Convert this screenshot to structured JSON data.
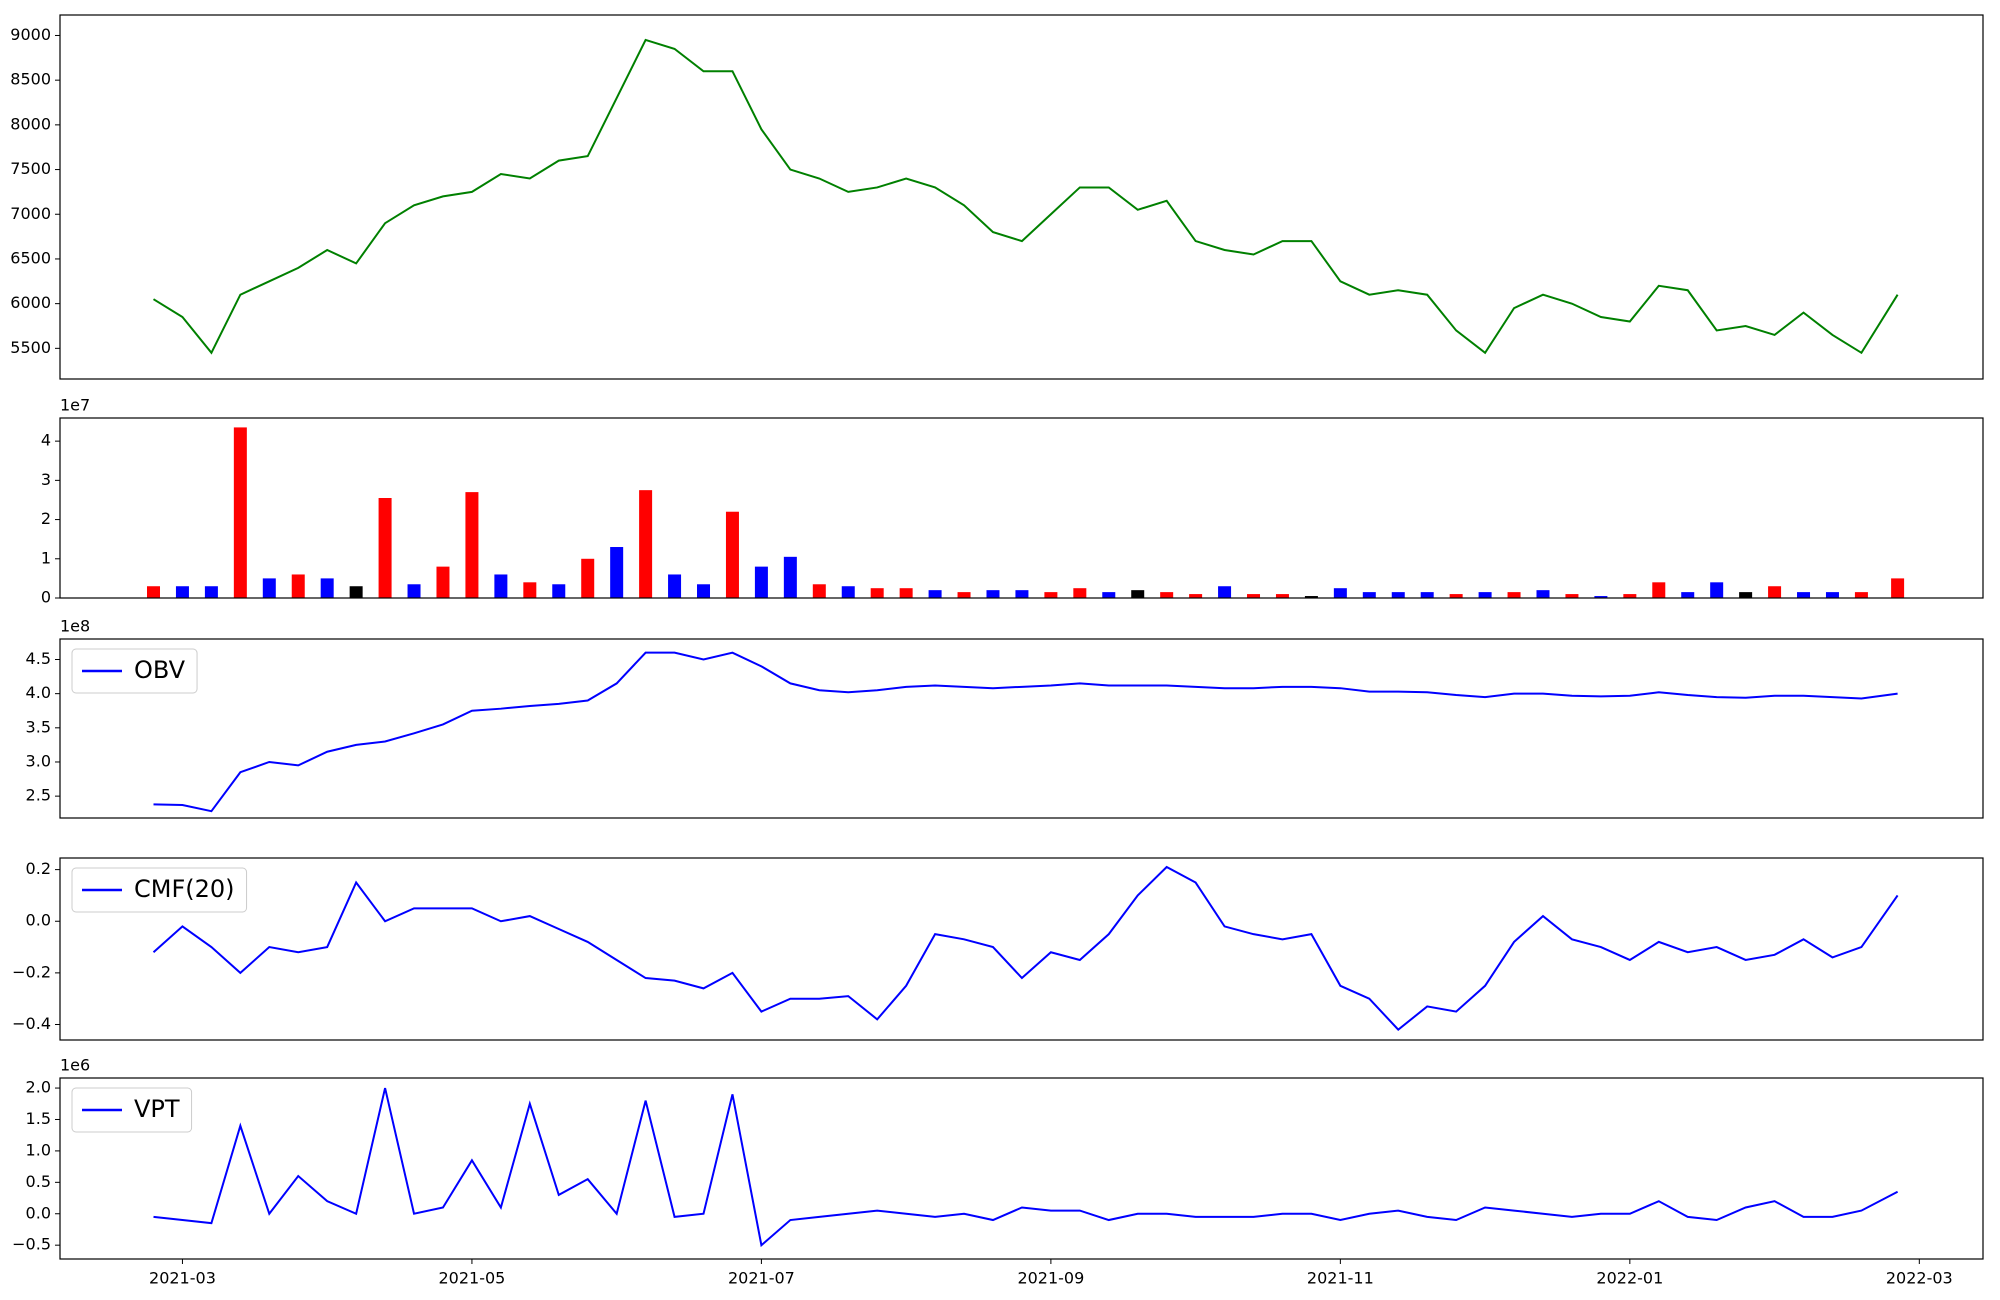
{
  "chart_data": [
    {
      "type": "line",
      "x": [
        1.8,
        2.0,
        2.2,
        2.4,
        2.6,
        2.8,
        3.0,
        3.2,
        3.4,
        3.6,
        3.8,
        4.0,
        4.2,
        4.4,
        4.6,
        4.8,
        5.0,
        5.2,
        5.4,
        5.6,
        5.8,
        6.0,
        6.2,
        6.4,
        6.6,
        6.8,
        7.0,
        7.2,
        7.4,
        7.6,
        7.8,
        8.0,
        8.2,
        8.4,
        8.6,
        8.8,
        9.0,
        9.2,
        9.4,
        9.6,
        9.8,
        10.0,
        10.2,
        10.4,
        10.6,
        10.8,
        11.0,
        11.2,
        11.4,
        11.6,
        11.8,
        12.0,
        12.2,
        12.4,
        12.6,
        12.8,
        13.0,
        13.2,
        13.4,
        13.6,
        13.85
      ],
      "series": [
        {
          "color": "green",
          "values": [
            6050,
            5850,
            5450,
            6100,
            6250,
            6400,
            6600,
            6450,
            6900,
            7100,
            7200,
            7250,
            7450,
            7400,
            7600,
            7650,
            8300,
            8950,
            8850,
            8600,
            8600,
            7950,
            7500,
            7400,
            7250,
            7300,
            7400,
            7300,
            7100,
            6800,
            6700,
            7000,
            7300,
            7300,
            7050,
            7150,
            6700,
            6600,
            6550,
            6700,
            6700,
            6250,
            6100,
            6150,
            6100,
            5700,
            5450,
            5950,
            6100,
            6000,
            5850,
            5800,
            6200,
            6150,
            5700,
            5750,
            5650,
            5900,
            5650,
            5450,
            6100
          ]
        }
      ],
      "xlim": [
        1.154,
        14.44
      ],
      "ylim": [
        5157,
        9229
      ],
      "yticks": [
        5500,
        6000,
        6500,
        7000,
        7500,
        8000,
        8500,
        9000
      ]
    },
    {
      "type": "bar",
      "offset_label": "1e7",
      "x": [
        1.8,
        2.0,
        2.2,
        2.4,
        2.6,
        2.8,
        3.0,
        3.2,
        3.4,
        3.6,
        3.8,
        4.0,
        4.2,
        4.4,
        4.6,
        4.8,
        5.0,
        5.2,
        5.4,
        5.6,
        5.8,
        6.0,
        6.2,
        6.4,
        6.6,
        6.8,
        7.0,
        7.2,
        7.4,
        7.6,
        7.8,
        8.0,
        8.2,
        8.4,
        8.6,
        8.8,
        9.0,
        9.2,
        9.4,
        9.6,
        9.8,
        10.0,
        10.2,
        10.4,
        10.6,
        10.8,
        11.0,
        11.2,
        11.4,
        11.6,
        11.8,
        12.0,
        12.2,
        12.4,
        12.6,
        12.8,
        13.0,
        13.2,
        13.4,
        13.6,
        13.85
      ],
      "values": [
        0.3,
        0.3,
        0.3,
        4.35,
        0.5,
        0.6,
        0.5,
        0.3,
        2.55,
        0.35,
        0.8,
        2.7,
        0.6,
        0.4,
        0.35,
        1.0,
        1.3,
        2.75,
        0.6,
        0.35,
        2.2,
        0.8,
        1.05,
        0.35,
        0.3,
        0.25,
        0.25,
        0.2,
        0.15,
        0.2,
        0.2,
        0.15,
        0.25,
        0.15,
        0.2,
        0.15,
        0.1,
        0.3,
        0.1,
        0.1,
        0.05,
        0.25,
        0.15,
        0.15,
        0.15,
        0.1,
        0.15,
        0.15,
        0.2,
        0.1,
        0.05,
        0.1,
        0.4,
        0.15,
        0.4,
        0.15,
        0.3,
        0.15,
        0.15,
        0.15,
        0.5
      ],
      "colors": [
        "red",
        "blue",
        "blue",
        "red",
        "blue",
        "red",
        "blue",
        "black",
        "red",
        "blue",
        "red",
        "red",
        "blue",
        "red",
        "blue",
        "red",
        "blue",
        "red",
        "blue",
        "blue",
        "red",
        "blue",
        "blue",
        "red",
        "blue",
        "red",
        "red",
        "blue",
        "red",
        "blue",
        "blue",
        "red",
        "red",
        "blue",
        "black",
        "red",
        "red",
        "blue",
        "red",
        "red",
        "black",
        "blue",
        "blue",
        "blue",
        "blue",
        "red",
        "blue",
        "red",
        "blue",
        "red",
        "blue",
        "red",
        "red",
        "blue",
        "blue",
        "black",
        "red",
        "blue",
        "blue",
        "red",
        "red"
      ],
      "xlim": [
        1.154,
        14.44
      ],
      "ylim": [
        0,
        4.59
      ],
      "yticks": [
        0,
        1,
        2,
        3,
        4
      ]
    },
    {
      "type": "line",
      "offset_label": "1e8",
      "legend": "upper left",
      "x": [
        1.8,
        2.0,
        2.2,
        2.4,
        2.6,
        2.8,
        3.0,
        3.2,
        3.4,
        3.6,
        3.8,
        4.0,
        4.2,
        4.4,
        4.6,
        4.8,
        5.0,
        5.2,
        5.4,
        5.6,
        5.8,
        6.0,
        6.2,
        6.4,
        6.6,
        6.8,
        7.0,
        7.2,
        7.4,
        7.6,
        7.8,
        8.0,
        8.2,
        8.4,
        8.6,
        8.8,
        9.0,
        9.2,
        9.4,
        9.6,
        9.8,
        10.0,
        10.2,
        10.4,
        10.6,
        10.8,
        11.0,
        11.2,
        11.4,
        11.6,
        11.8,
        12.0,
        12.2,
        12.4,
        12.6,
        12.8,
        13.0,
        13.2,
        13.4,
        13.6,
        13.85
      ],
      "series": [
        {
          "name": "OBV",
          "color": "blue",
          "values": [
            2.38,
            2.37,
            2.28,
            2.85,
            3.0,
            2.95,
            3.15,
            3.25,
            3.3,
            3.42,
            3.55,
            3.75,
            3.78,
            3.82,
            3.85,
            3.9,
            4.15,
            4.6,
            4.6,
            4.5,
            4.6,
            4.4,
            4.15,
            4.05,
            4.02,
            4.05,
            4.1,
            4.12,
            4.1,
            4.08,
            4.1,
            4.12,
            4.15,
            4.12,
            4.12,
            4.12,
            4.1,
            4.08,
            4.08,
            4.1,
            4.1,
            4.08,
            4.03,
            4.03,
            4.02,
            3.98,
            3.95,
            4.0,
            4.0,
            3.97,
            3.96,
            3.97,
            4.02,
            3.98,
            3.95,
            3.94,
            3.97,
            3.97,
            3.95,
            3.93,
            4.0
          ]
        }
      ],
      "xlim": [
        1.154,
        14.44
      ],
      "ylim": [
        2.18,
        4.8
      ],
      "yticks": [
        2.5,
        {
          "value": 3,
          "label": "3.0"
        },
        3.5,
        {
          "value": 4,
          "label": "4.0"
        },
        4.5
      ]
    },
    {
      "type": "line",
      "legend": "upper left",
      "x": [
        1.8,
        2.0,
        2.2,
        2.4,
        2.6,
        2.8,
        3.0,
        3.2,
        3.4,
        3.6,
        3.8,
        4.0,
        4.2,
        4.4,
        4.6,
        4.8,
        5.0,
        5.2,
        5.4,
        5.6,
        5.8,
        6.0,
        6.2,
        6.4,
        6.6,
        6.8,
        7.0,
        7.2,
        7.4,
        7.6,
        7.8,
        8.0,
        8.2,
        8.4,
        8.6,
        8.8,
        9.0,
        9.2,
        9.4,
        9.6,
        9.8,
        10.0,
        10.2,
        10.4,
        10.6,
        10.8,
        11.0,
        11.2,
        11.4,
        11.6,
        11.8,
        12.0,
        12.2,
        12.4,
        12.6,
        12.8,
        13.0,
        13.2,
        13.4,
        13.6,
        13.85
      ],
      "series": [
        {
          "name": "CMF(20)",
          "color": "blue",
          "values": [
            -0.12,
            -0.02,
            -0.1,
            -0.2,
            -0.1,
            -0.12,
            -0.1,
            0.15,
            0.0,
            0.05,
            0.05,
            0.05,
            0.0,
            0.02,
            -0.03,
            -0.08,
            -0.15,
            -0.22,
            -0.23,
            -0.26,
            -0.2,
            -0.35,
            -0.3,
            -0.3,
            -0.29,
            -0.38,
            -0.25,
            -0.05,
            -0.07,
            -0.1,
            -0.22,
            -0.12,
            -0.15,
            -0.05,
            0.1,
            0.21,
            0.15,
            -0.02,
            -0.05,
            -0.07,
            -0.05,
            -0.25,
            -0.3,
            -0.42,
            -0.33,
            -0.35,
            -0.25,
            -0.08,
            0.02,
            -0.07,
            -0.1,
            -0.15,
            -0.08,
            -0.12,
            -0.1,
            -0.15,
            -0.13,
            -0.07,
            -0.14,
            -0.1,
            0.1
          ]
        }
      ],
      "xlim": [
        1.154,
        14.44
      ],
      "ylim": [
        -0.46,
        0.245
      ],
      "yticks": [
        {
          "value": -0.4,
          "label": "−0.4"
        },
        {
          "value": -0.2,
          "label": "−0.2"
        },
        {
          "value": 0,
          "label": "0.0"
        },
        0.2
      ]
    },
    {
      "type": "line",
      "offset_label": "1e6",
      "legend": "upper left",
      "x": [
        1.8,
        2.0,
        2.2,
        2.4,
        2.6,
        2.8,
        3.0,
        3.2,
        3.4,
        3.6,
        3.8,
        4.0,
        4.2,
        4.4,
        4.6,
        4.8,
        5.0,
        5.2,
        5.4,
        5.6,
        5.8,
        6.0,
        6.2,
        6.4,
        6.6,
        6.8,
        7.0,
        7.2,
        7.4,
        7.6,
        7.8,
        8.0,
        8.2,
        8.4,
        8.6,
        8.8,
        9.0,
        9.2,
        9.4,
        9.6,
        9.8,
        10.0,
        10.2,
        10.4,
        10.6,
        10.8,
        11.0,
        11.2,
        11.4,
        11.6,
        11.8,
        12.0,
        12.2,
        12.4,
        12.6,
        12.8,
        13.0,
        13.2,
        13.4,
        13.6,
        13.85
      ],
      "series": [
        {
          "name": "VPT",
          "color": "blue",
          "values": [
            -0.05,
            -0.1,
            -0.15,
            1.4,
            0.0,
            0.6,
            0.2,
            0.0,
            2.0,
            0.0,
            0.1,
            0.85,
            0.1,
            1.75,
            0.3,
            0.55,
            0.0,
            1.8,
            -0.05,
            0.0,
            1.9,
            -0.5,
            -0.1,
            -0.05,
            0.0,
            0.05,
            0.0,
            -0.05,
            0.0,
            -0.1,
            0.1,
            0.05,
            0.05,
            -0.1,
            0.0,
            0.0,
            -0.05,
            -0.05,
            -0.05,
            0.0,
            0.0,
            -0.1,
            0.0,
            0.05,
            -0.05,
            -0.1,
            0.1,
            0.05,
            0.0,
            -0.05,
            0.0,
            0.0,
            0.2,
            -0.05,
            -0.1,
            0.1,
            0.2,
            -0.05,
            -0.05,
            0.05,
            0.35
          ]
        }
      ],
      "xlim": [
        1.154,
        14.44
      ],
      "ylim": [
        -0.72,
        2.16
      ],
      "yticks": [
        {
          "value": -0.5,
          "label": "−0.5"
        },
        {
          "value": 0,
          "label": "0.0"
        },
        0.5,
        {
          "value": 1,
          "label": "1.0"
        },
        1.5,
        {
          "value": 2,
          "label": "2.0"
        }
      ],
      "xticks": [
        {
          "value": 2,
          "label": "2021-03"
        },
        {
          "value": 4,
          "label": "2021-05"
        },
        {
          "value": 6,
          "label": "2021-07"
        },
        {
          "value": 8,
          "label": "2021-09"
        },
        {
          "value": 10,
          "label": "2021-11"
        },
        {
          "value": 12,
          "label": "2022-01"
        },
        {
          "value": 14,
          "label": "2022-03"
        }
      ]
    }
  ]
}
